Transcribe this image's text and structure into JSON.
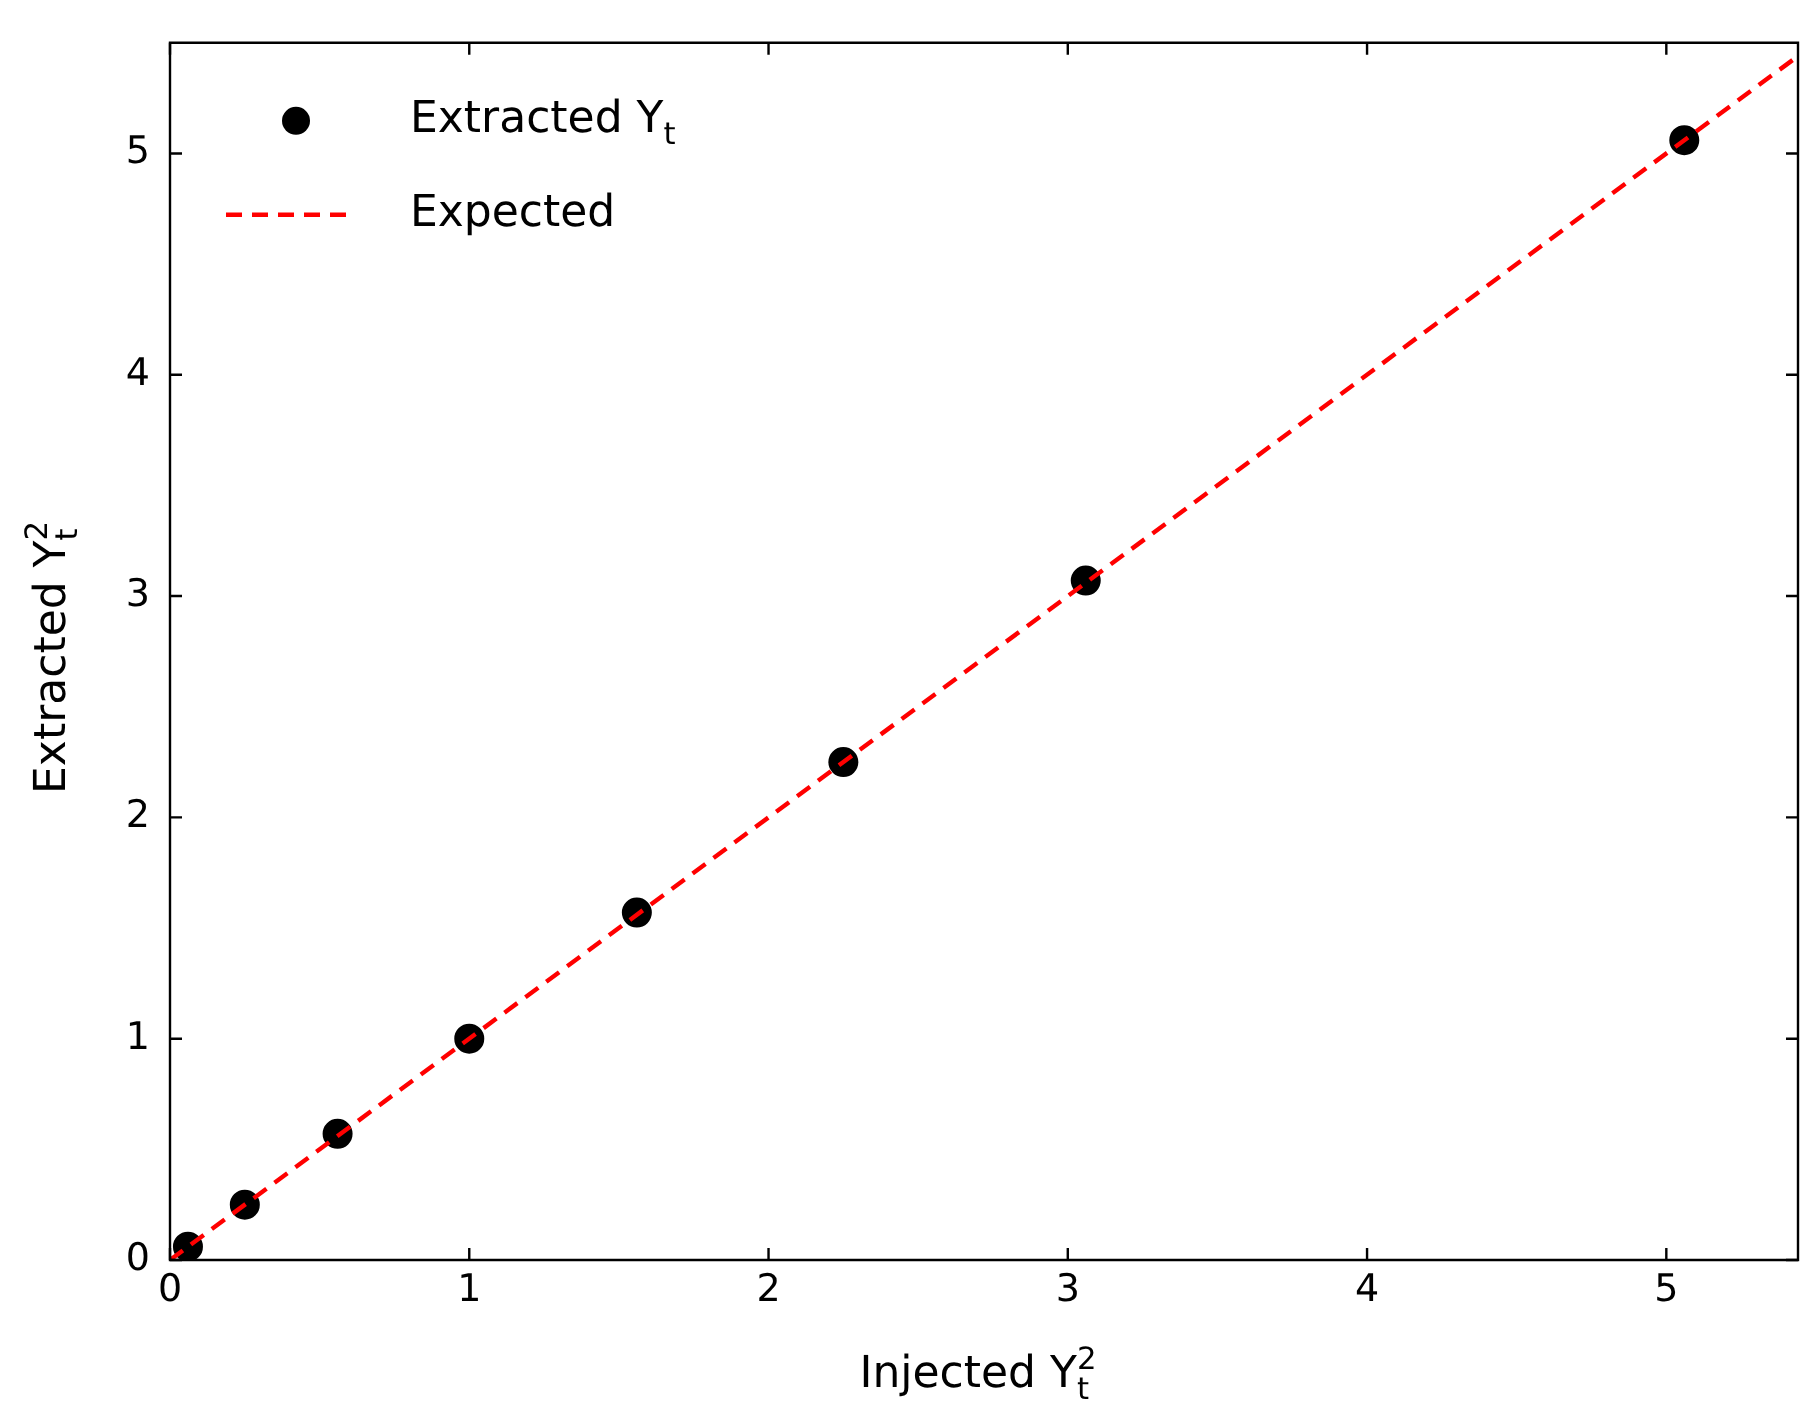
{
  "chart_data": {
    "type": "scatter",
    "xlabel": "Injected Y$_{t}$$^{2}$",
    "ylabel": "Extracted Y$_{t}$$^{2}$",
    "xlim": [
      0,
      5.44
    ],
    "ylim": [
      0,
      5.5
    ],
    "xticks": [
      0,
      1,
      2,
      3,
      4,
      5
    ],
    "yticks": [
      0,
      1,
      2,
      3,
      4,
      5
    ],
    "grid": false,
    "legend": "top left",
    "series": [
      {
        "name": "Extracted Y$_{t}$",
        "marker": "circle",
        "color": "#000000",
        "x": [
          0.06,
          0.25,
          0.56,
          1,
          1.56,
          2.25,
          3.06,
          5.06
        ],
        "values": [
          0.06,
          0.25,
          0.57,
          1,
          1.57,
          2.25,
          3.07,
          5.06
        ]
      },
      {
        "name": "Expected",
        "type": "line",
        "color": "#ff0000",
        "line_style": "dashed",
        "x": [
          0,
          5.44
        ],
        "values": [
          0,
          5.44
        ]
      }
    ]
  }
}
